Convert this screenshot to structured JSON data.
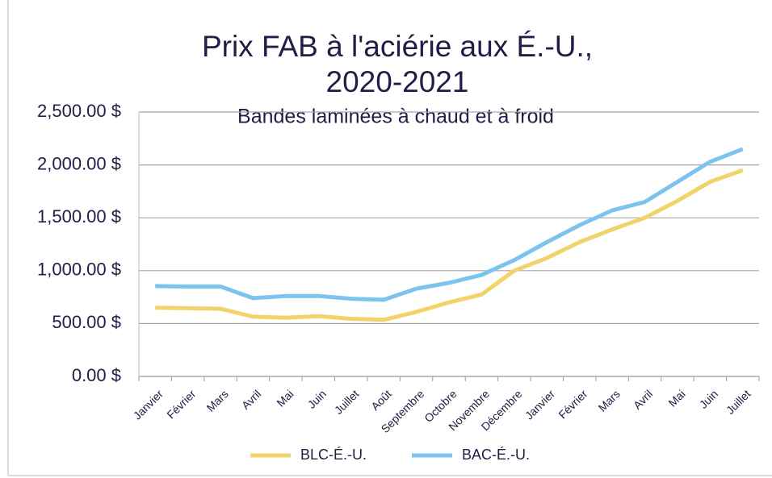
{
  "chart_data": {
    "type": "line",
    "title": [
      "Prix FAB à l'aciérie aux É.-U.,",
      "2020-2021"
    ],
    "subtitle": "Bandes laminées à chaud et à froid",
    "categories": [
      "Janvier",
      "Février",
      "Mars",
      "Avril",
      "Mai",
      "Juin",
      "Juillet",
      "Août",
      "Septembre",
      "Octobre",
      "Novembre",
      "Décembre",
      "Janvier",
      "Février",
      "Mars",
      "Avril",
      "Mai",
      "Juin",
      "Juillet"
    ],
    "series": [
      {
        "name": "BLC-É.-U.",
        "color": "#f2d36b",
        "values": [
          650,
          645,
          640,
          565,
          555,
          570,
          545,
          535,
          610,
          700,
          775,
          1000,
          1120,
          1270,
          1390,
          1500,
          1660,
          1840,
          1950
        ]
      },
      {
        "name": "BAC-É.-U.",
        "color": "#7cc4ee",
        "values": [
          855,
          850,
          850,
          740,
          760,
          760,
          735,
          725,
          830,
          885,
          960,
          1100,
          1270,
          1430,
          1570,
          1650,
          1840,
          2030,
          2150
        ]
      }
    ],
    "ylim": [
      0,
      2500
    ],
    "yticks": [
      {
        "value": 0,
        "label": "0.00 $"
      },
      {
        "value": 500,
        "label": "500.00 $"
      },
      {
        "value": 1000,
        "label": "1,000.00 $"
      },
      {
        "value": 1500,
        "label": "1,500.00 $"
      },
      {
        "value": 2000,
        "label": "2,000.00 $"
      },
      {
        "value": 2500,
        "label": "2,500.00 $"
      }
    ],
    "grid": true,
    "legend": "bottom"
  }
}
